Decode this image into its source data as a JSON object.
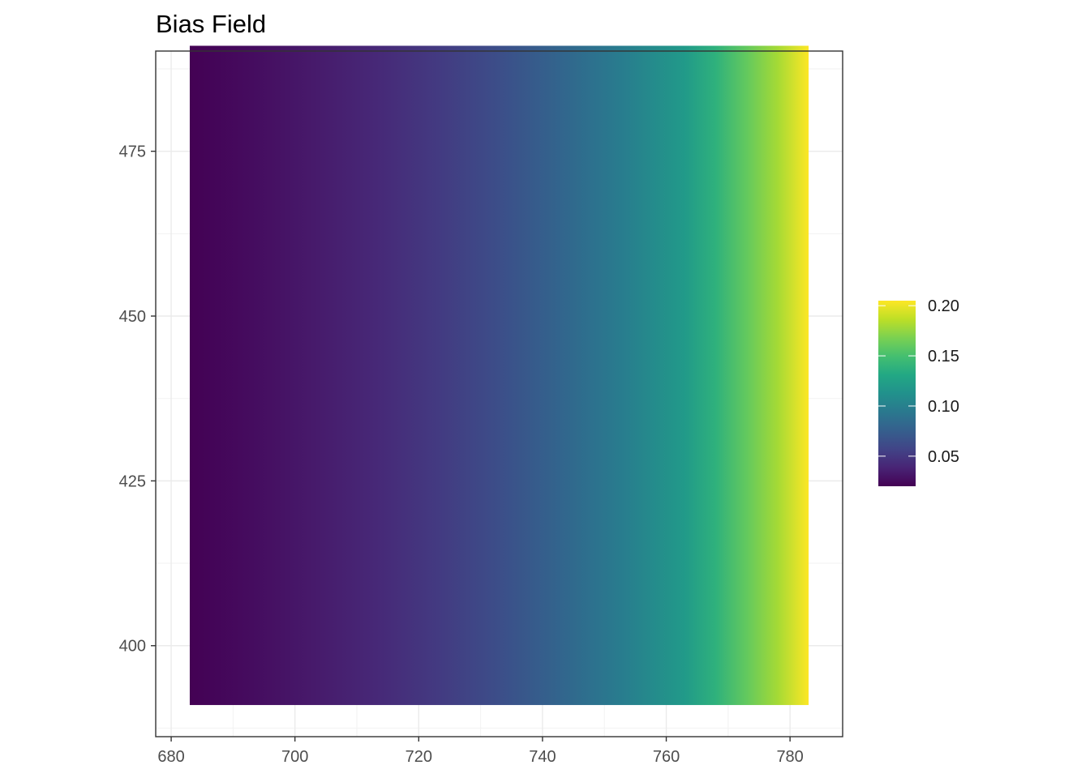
{
  "chart_data": {
    "type": "heatmap",
    "title": "Bias Field",
    "xlabel": "",
    "ylabel": "",
    "xlim": [
      677.5,
      788.5
    ],
    "ylim": [
      386.2,
      490.2
    ],
    "x_ticks": [
      680,
      700,
      720,
      740,
      760,
      780
    ],
    "x_tick_labels": [
      "680",
      "700",
      "720",
      "740",
      "760",
      "780"
    ],
    "y_ticks": [
      400,
      425,
      450,
      475
    ],
    "y_tick_labels": [
      "400",
      "425",
      "450",
      "475"
    ],
    "grid": true,
    "theme": "bw",
    "raster": {
      "x_range": [
        683,
        783
      ],
      "y_range": [
        391,
        491
      ],
      "direction": "value increases with x; constant along y",
      "x": [
        683,
        693,
        703,
        713,
        723,
        733,
        743,
        753,
        763,
        768,
        773,
        778,
        783
      ],
      "values": [
        0.02,
        0.026,
        0.033,
        0.041,
        0.051,
        0.064,
        0.08,
        0.098,
        0.12,
        0.138,
        0.16,
        0.18,
        0.205
      ]
    },
    "colorscale": "viridis",
    "legend": {
      "position": "right",
      "range": [
        0.02,
        0.205
      ],
      "tick_values": [
        0.05,
        0.1,
        0.15,
        0.2
      ],
      "tick_labels": [
        "0.05",
        "0.10",
        "0.15",
        "0.20"
      ]
    }
  }
}
